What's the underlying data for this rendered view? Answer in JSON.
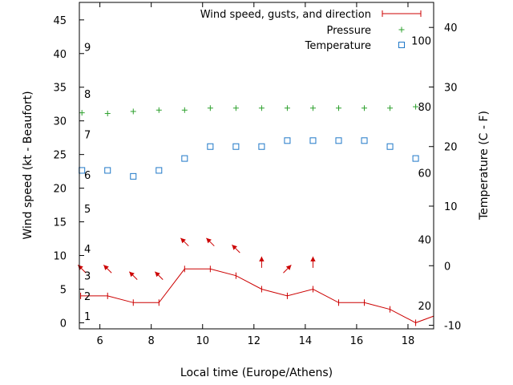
{
  "chart_data": {
    "type": "line",
    "xlabel": "Local time (Europe/Athens)",
    "ylabel": "Wind speed (kt - Beaufort)",
    "y2label": "Temperature (C - F)",
    "xlim": [
      5.2,
      19.0
    ],
    "ylim": [
      -0.9,
      47.6
    ],
    "y2lim": [
      -10.6,
      44.2
    ],
    "x_ticks": [
      6,
      8,
      10,
      12,
      14,
      16,
      18
    ],
    "y_ticks": [
      0,
      5,
      10,
      15,
      20,
      25,
      30,
      35,
      40,
      45
    ],
    "y2_ticks": [
      -10,
      0,
      10,
      20,
      30,
      40
    ],
    "beaufort_labels": [
      {
        "label": "1",
        "kt": 1
      },
      {
        "label": "2",
        "kt": 4
      },
      {
        "label": "3",
        "kt": 7
      },
      {
        "label": "4",
        "kt": 11
      },
      {
        "label": "5",
        "kt": 17
      },
      {
        "label": "6",
        "kt": 22
      },
      {
        "label": "7",
        "kt": 28
      },
      {
        "label": "8",
        "kt": 34
      },
      {
        "label": "9",
        "kt": 41
      }
    ],
    "fahrenheit_labels": [
      {
        "label": "20",
        "c": -6.7
      },
      {
        "label": "40",
        "c": 4.4
      },
      {
        "label": "60",
        "c": 15.6
      },
      {
        "label": "80",
        "c": 26.7
      },
      {
        "label": "100",
        "c": 37.8
      }
    ],
    "legend_position": "top-right",
    "series": [
      {
        "name": "Wind speed, gusts, and direction",
        "color": "#cc0000",
        "marker": "vertical-tick",
        "x": [
          5.25,
          6.3,
          7.3,
          8.3,
          9.3,
          10.3,
          11.3,
          12.3,
          13.3,
          14.3,
          15.3,
          16.3,
          17.3,
          18.3,
          19.0
        ],
        "y": [
          4,
          4,
          3,
          3,
          8,
          8,
          7,
          5,
          4,
          5,
          3,
          3,
          2,
          0,
          1
        ]
      },
      {
        "name": "Pressure",
        "color": "#2ca02c",
        "marker": "plus",
        "x": [
          5.3,
          6.3,
          7.3,
          8.3,
          9.3,
          10.3,
          11.3,
          12.3,
          13.3,
          14.3,
          15.3,
          16.3,
          17.3,
          18.3
        ],
        "y": [
          31.2,
          31.1,
          31.4,
          31.6,
          31.6,
          31.9,
          31.9,
          31.9,
          31.9,
          31.9,
          31.9,
          31.9,
          31.9,
          32.1
        ]
      },
      {
        "name": "Temperature",
        "color": "#1f78c8",
        "marker": "square",
        "x": [
          5.3,
          6.3,
          7.3,
          8.3,
          9.3,
          10.3,
          11.3,
          12.3,
          13.3,
          14.3,
          15.3,
          16.3,
          17.3,
          18.3
        ],
        "y": [
          16,
          16,
          15,
          16,
          18,
          20,
          20,
          20,
          21,
          21,
          21,
          21,
          20,
          18
        ]
      }
    ],
    "wind_direction_arrows": [
      {
        "x": 5.3,
        "y": 8.0,
        "dir": "up-left"
      },
      {
        "x": 6.3,
        "y": 8.0,
        "dir": "up-left"
      },
      {
        "x": 7.3,
        "y": 7.0,
        "dir": "up-left"
      },
      {
        "x": 8.3,
        "y": 7.0,
        "dir": "up-left"
      },
      {
        "x": 9.3,
        "y": 12.0,
        "dir": "up-left"
      },
      {
        "x": 10.3,
        "y": 12.0,
        "dir": "up-left"
      },
      {
        "x": 11.3,
        "y": 11.0,
        "dir": "up-left"
      },
      {
        "x": 12.3,
        "y": 9.0,
        "dir": "up"
      },
      {
        "x": 13.3,
        "y": 8.0,
        "dir": "up-right"
      },
      {
        "x": 14.3,
        "y": 9.0,
        "dir": "up"
      }
    ]
  }
}
